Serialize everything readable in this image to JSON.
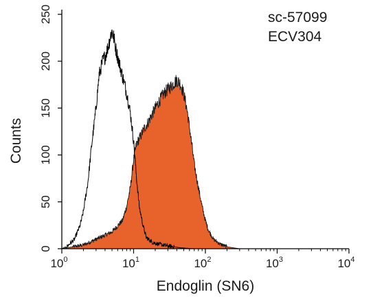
{
  "chart_data": {
    "type": "area",
    "title": "",
    "xlabel": "Endoglin (SN6)",
    "ylabel": "Counts",
    "xscale": "log",
    "xlim": [
      1,
      10000
    ],
    "ylim": [
      0,
      255
    ],
    "x_ticks": [
      {
        "value": 1,
        "base": "10",
        "exp": "0"
      },
      {
        "value": 10,
        "base": "10",
        "exp": "1"
      },
      {
        "value": 100,
        "base": "10",
        "exp": "2"
      },
      {
        "value": 1000,
        "base": "10",
        "exp": "3"
      },
      {
        "value": 10000,
        "base": "10",
        "exp": "4"
      }
    ],
    "y_ticks": [
      0,
      50,
      100,
      150,
      200,
      250
    ],
    "grid": false,
    "annotations": [
      "sc-57099",
      "ECV304"
    ],
    "series": [
      {
        "style": "outline",
        "color": "#000000",
        "x": [
          1.0,
          1.2,
          1.5,
          1.8,
          2.0,
          2.3,
          2.6,
          3.0,
          3.3,
          3.7,
          4.0,
          4.4,
          4.8,
          5.0,
          5.3,
          5.7,
          6.2,
          6.8,
          7.5,
          8.2,
          9.0,
          10.0,
          11.0,
          12.0,
          13.5,
          15.0,
          18.0,
          22.0,
          30.0,
          45.0,
          70.0,
          100.0
        ],
        "y": [
          0,
          3,
          10,
          25,
          40,
          70,
          110,
          150,
          185,
          200,
          205,
          215,
          228,
          232,
          225,
          212,
          200,
          188,
          175,
          162,
          145,
          115,
          75,
          45,
          25,
          12,
          7,
          5,
          3,
          1,
          0,
          0
        ]
      },
      {
        "style": "filled",
        "color": "#e8632b",
        "x": [
          1.0,
          2.0,
          3.0,
          5.0,
          7.0,
          8.0,
          9.0,
          10.0,
          11.0,
          12.5,
          14.0,
          16.0,
          18.0,
          20.0,
          23.0,
          26.0,
          30.0,
          35.0,
          40.0,
          45.0,
          50.0,
          55.0,
          60.0,
          65.0,
          70.0,
          80.0,
          90.0,
          100.0,
          110.0,
          130.0,
          160.0,
          200.0,
          300.0
        ],
        "y": [
          0,
          4,
          10,
          18,
          30,
          45,
          65,
          95,
          112,
          120,
          128,
          135,
          143,
          150,
          158,
          165,
          170,
          175,
          180,
          176,
          165,
          150,
          130,
          110,
          90,
          65,
          45,
          30,
          20,
          10,
          5,
          2,
          0
        ]
      }
    ]
  }
}
